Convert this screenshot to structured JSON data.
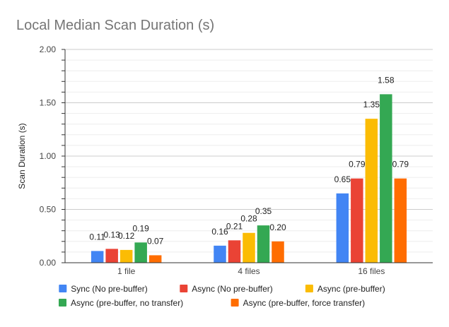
{
  "chart_data": {
    "type": "bar",
    "title": "Local Median Scan Duration (s)",
    "xlabel": "",
    "ylabel": "Scan Duration (s)",
    "ylim": [
      0,
      2.0
    ],
    "yticks": [
      "0.00",
      "0.50",
      "1.00",
      "1.50",
      "2.00"
    ],
    "ytick_values": [
      0,
      0.5,
      1.0,
      1.5,
      2.0
    ],
    "grid": true,
    "legend_position": "bottom",
    "categories": [
      "1 file",
      "4 files",
      "16 files"
    ],
    "series": [
      {
        "name": "Sync (No pre-buffer)",
        "color": "#4285F4",
        "values": [
          0.11,
          0.16,
          0.65
        ],
        "labels": [
          "0.11",
          "0.16",
          "0.65"
        ]
      },
      {
        "name": "Async (No pre-buffer)",
        "color": "#EA4335",
        "values": [
          0.13,
          0.21,
          0.79
        ],
        "labels": [
          "0.13",
          "0.21",
          "0.79"
        ]
      },
      {
        "name": "Async (pre-buffer)",
        "color": "#FBBC04",
        "values": [
          0.12,
          0.28,
          1.35
        ],
        "labels": [
          "0.12",
          "0.28",
          "1.35"
        ]
      },
      {
        "name": "Async (pre-buffer, no transfer)",
        "color": "#34A853",
        "values": [
          0.19,
          0.35,
          1.58
        ],
        "labels": [
          "0.19",
          "0.35",
          "1.58"
        ]
      },
      {
        "name": "Async (pre-buffer, force transfer)",
        "color": "#FF6D01",
        "values": [
          0.07,
          0.2,
          0.79
        ],
        "labels": [
          "0.07",
          "0.20",
          "0.79"
        ]
      }
    ]
  }
}
